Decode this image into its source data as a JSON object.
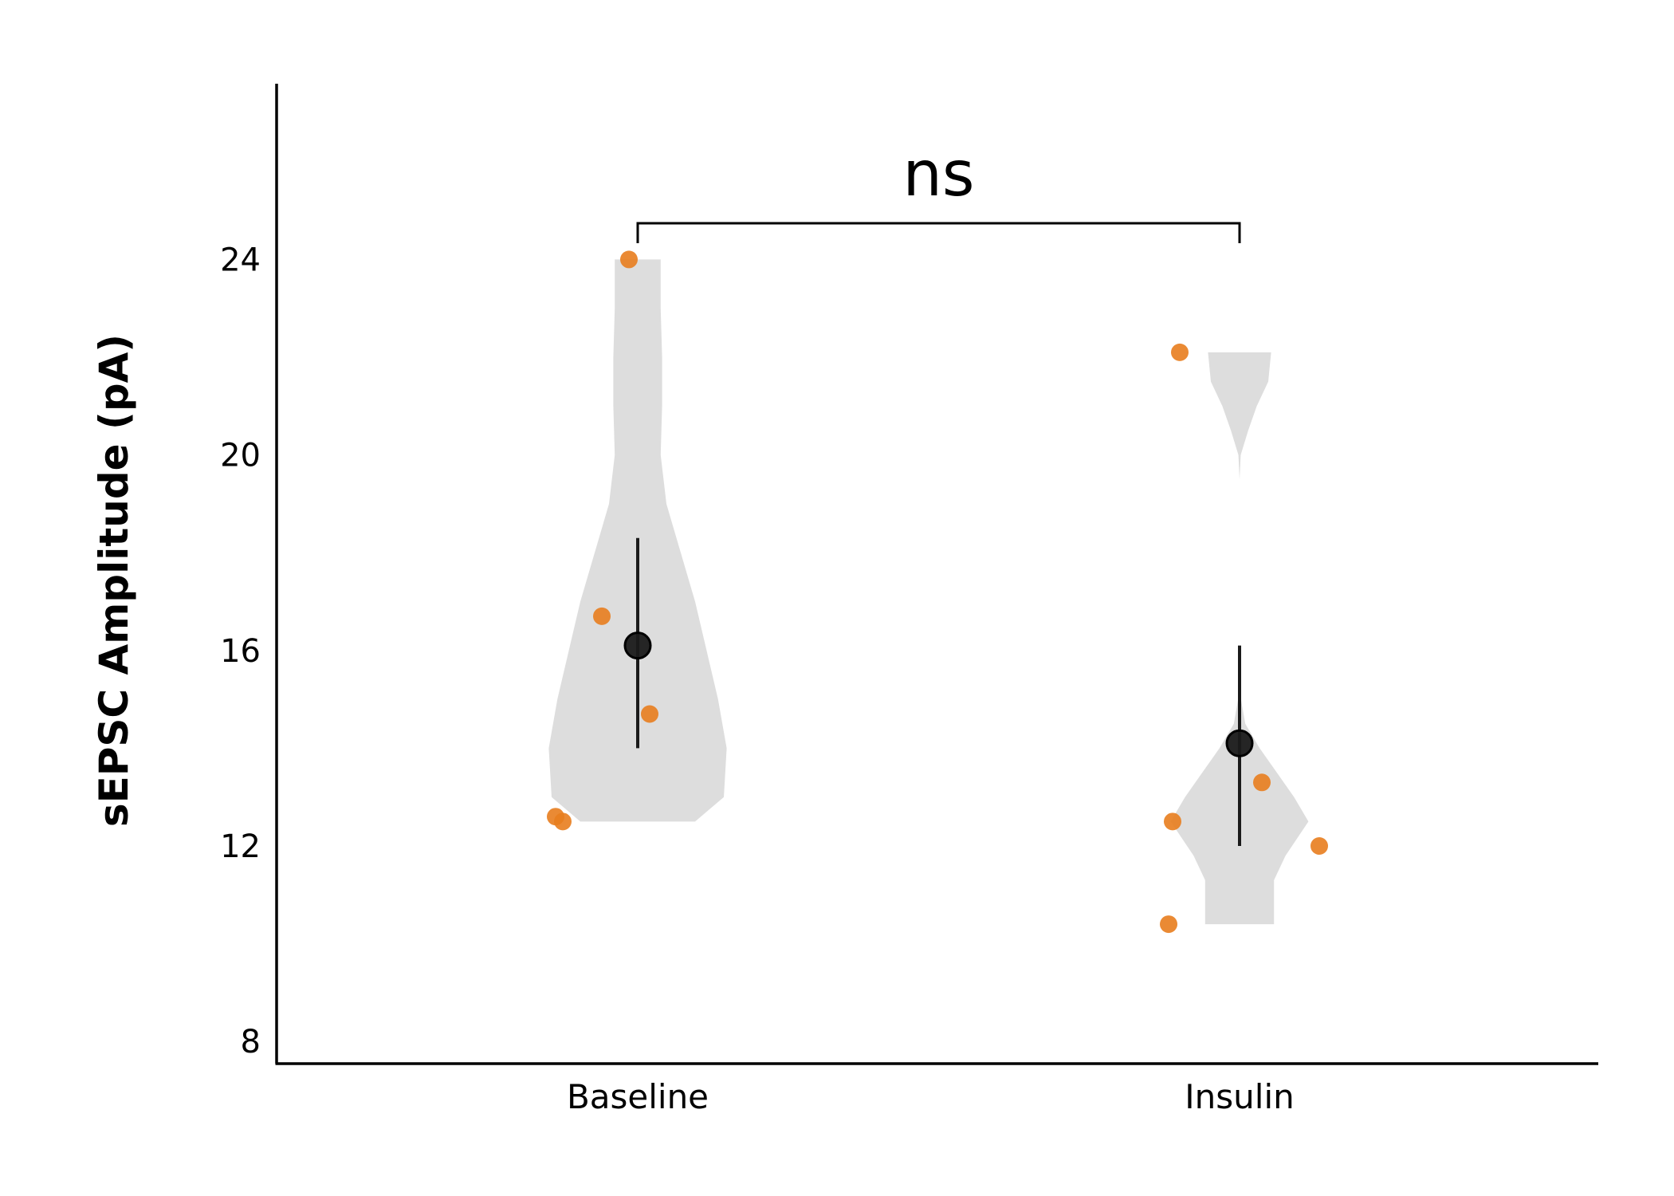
{
  "chart_data": {
    "type": "violin",
    "title": "",
    "xlabel": "",
    "ylabel": "sEPSC Amplitude (pA)",
    "ylim": [
      7.5,
      27.5
    ],
    "yticks": [
      8,
      12,
      16,
      20,
      24
    ],
    "yticklabels": [
      "8",
      "12",
      "16",
      "20",
      "24"
    ],
    "categories": [
      "Baseline",
      "Insulin"
    ],
    "grid": false,
    "colors": {
      "points": "#e87d1e",
      "violin": "#dddddd",
      "mean": "#1a1a1a",
      "axis": "#000000"
    },
    "groups": [
      {
        "name": "Baseline",
        "points": [
          24.0,
          16.7,
          14.7,
          12.6,
          12.5
        ],
        "mean": 16.1,
        "error": [
          14.0,
          18.3
        ],
        "violin": {
          "y": [
            12.5,
            13.0,
            14.0,
            15.0,
            16.0,
            17.0,
            18.0,
            19.0,
            20.0,
            21.0,
            22.0,
            23.0,
            24.0
          ],
          "halfwidth": [
            0.2,
            0.3,
            0.31,
            0.28,
            0.24,
            0.2,
            0.15,
            0.1,
            0.08,
            0.085,
            0.085,
            0.08,
            0.08
          ]
        }
      },
      {
        "name": "Insulin",
        "points": [
          22.1,
          13.3,
          12.5,
          12.0,
          10.4
        ],
        "mean": 14.1,
        "error": [
          12.0,
          16.1
        ],
        "violin": {
          "y": [
            10.4,
            10.8,
            11.3,
            11.8,
            12.5,
            13.0,
            13.5,
            14.0,
            14.5,
            15.0,
            15.6,
            16.5,
            18.0,
            19.5,
            20.0,
            20.5,
            21.0,
            21.5,
            22.1
          ],
          "halfwidth": [
            0.12,
            0.12,
            0.12,
            0.16,
            0.24,
            0.19,
            0.13,
            0.07,
            0.02,
            0.005,
            0.0,
            0.0,
            0.0,
            0.0,
            0.004,
            0.03,
            0.06,
            0.1,
            0.11
          ]
        }
      }
    ],
    "comparison": {
      "groups": [
        "Baseline",
        "Insulin"
      ],
      "label": "ns"
    }
  }
}
